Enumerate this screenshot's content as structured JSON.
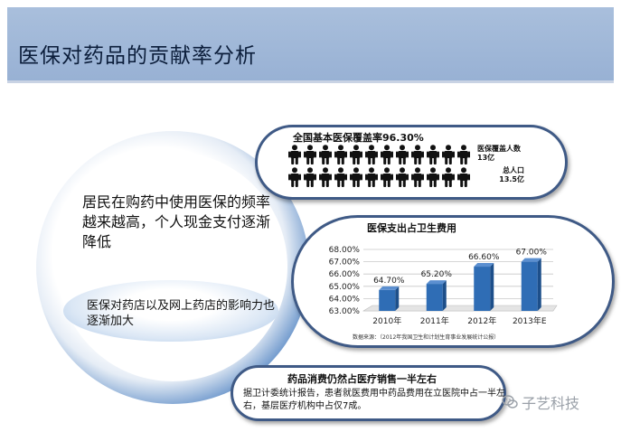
{
  "slide": {
    "title": "医保对药品的贡献率分析"
  },
  "ring": {
    "main_text": "居民在购药中使用医保的频率越来越高，个人现金支付逐渐降低",
    "oval_text": "医保对药店以及网上药店的影响力也逐渐加大"
  },
  "coverage": {
    "title": "全国基本医保覆盖率96.30%",
    "label_covered": "医保覆盖人数13亿",
    "label_total": "总人口13.5亿",
    "icon": "person-icon",
    "person_color": "#111111"
  },
  "chart_section": {
    "title": "医保支出占卫生费用",
    "source": "数据来源：（2012年我国卫生和计划生育事业发展统计公报）"
  },
  "chart_data": {
    "type": "bar",
    "categories": [
      "2010年",
      "2011年",
      "2012年",
      "2013年E"
    ],
    "values": [
      64.7,
      65.2,
      66.6,
      67.0
    ],
    "data_labels": [
      "64.70%",
      "65.20%",
      "66.60%",
      "67.00%"
    ],
    "ylim": [
      63.0,
      68.0
    ],
    "yticks": [
      "63.00%",
      "64.00%",
      "65.00%",
      "66.00%",
      "67.00%",
      "68.00%"
    ],
    "bar_color": "#2f6db5",
    "grid": true
  },
  "drug_sales": {
    "title": "药品消费仍然占医疗销售一半左右",
    "body": "据卫计委统计报告，患者就医费用中药品费用在立医院中占一半左右，基层医疗机构中占仅7成。"
  },
  "watermark": {
    "text": "子艺科技",
    "icon": "wechat-icon"
  },
  "colors": {
    "header_bg": "#a3bad9",
    "pill_border": "#3f5a86",
    "ring_blue": "#3b72b8"
  }
}
